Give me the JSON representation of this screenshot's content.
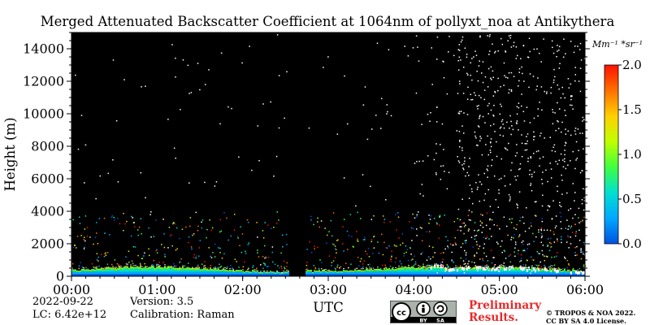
{
  "chart_data": {
    "type": "heatmap",
    "title": "Merged Attenuated Backscatter Coefficient at 1064nm of pollyxt_noa at Antikythera",
    "xlabel": "UTC",
    "ylabel": "Height (m)",
    "xlim": [
      "00:00",
      "06:00"
    ],
    "ylim": [
      0,
      15000
    ],
    "x_ticks": [
      "00:00",
      "01:00",
      "02:00",
      "03:00",
      "04:00",
      "05:00",
      "06:00"
    ],
    "y_ticks": [
      0,
      2000,
      4000,
      6000,
      8000,
      10000,
      12000,
      14000
    ],
    "colorbar": {
      "unit": "Mm⁻¹ *sr⁻¹",
      "range": [
        0.0,
        2.0
      ],
      "ticks": [
        "0.0",
        "0.5",
        "1.0",
        "1.5",
        "2.0"
      ],
      "colormap": [
        "#0050e0",
        "#00a8ff",
        "#00e0d0",
        "#40ff40",
        "#c0ff00",
        "#ffd000",
        "#ff7000",
        "#ff1000"
      ]
    },
    "background_color": "#000000",
    "data_gap": {
      "start": "02:32",
      "end": "02:44"
    },
    "features": [
      {
        "name": "boundary layer aerosol",
        "height_range_m": [
          0,
          800
        ],
        "time_range": [
          "00:00",
          "06:00"
        ]
      },
      {
        "name": "white noise speckles increasing",
        "time_range": [
          "04:40",
          "06:00"
        ]
      }
    ]
  },
  "footer": {
    "date": "2022-09-22",
    "lc": "LC: 6.42e+12",
    "version": "Version: 3.5",
    "calibration": "Calibration: Raman",
    "preliminary_line1": "Preliminary",
    "preliminary_line2": "Results.",
    "copyright_line1": "© TROPOS & NOA 2022.",
    "copyright_line2": "CC BY SA 4.0 License.",
    "cc_badge_labels": [
      "cc",
      "BY",
      "SA"
    ]
  }
}
